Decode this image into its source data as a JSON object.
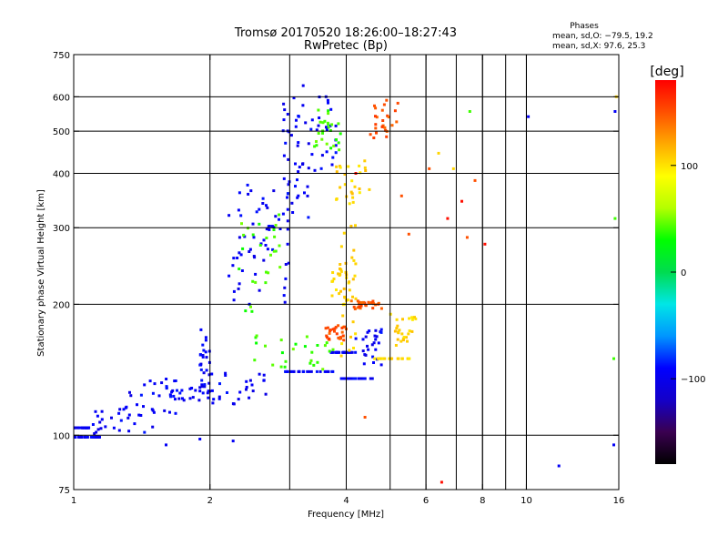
{
  "chart_data": {
    "type": "scatter",
    "title": "Tromsø 20170520 18:26:00–18:27:43",
    "subtitle": "RwPretec (Bp)",
    "xlabel": "Frequency [MHz]",
    "ylabel": "Stationary phase Virtual Height [km]",
    "x_scale": "log",
    "y_scale": "log",
    "xlim": [
      1,
      16
    ],
    "ylim": [
      75,
      750
    ],
    "x_ticks": [
      1,
      2,
      4,
      6,
      8,
      10,
      16
    ],
    "y_ticks": [
      75,
      100,
      200,
      300,
      400,
      500,
      600,
      750
    ],
    "x_tick_labels": [
      "1",
      "2",
      "4",
      "6",
      "8",
      "10",
      "16"
    ],
    "y_tick_labels": [
      "75",
      "100",
      "200",
      "300",
      "400",
      "500",
      "600",
      "750"
    ],
    "grid": true,
    "stats": {
      "heading": "Phases",
      "line_o": "mean, sd,O: −79.5, 19.2",
      "line_x": "mean, sd,X:  97.6, 25.3"
    },
    "colorbar": {
      "label": "[deg]",
      "range": [
        -180,
        180
      ],
      "ticks": [
        100,
        0,
        -100
      ],
      "tick_labels": [
        "100",
        "0",
        "−100"
      ],
      "colormap": [
        "#000000",
        "#3a0050",
        "#1400c8",
        "#0000ff",
        "#0096ff",
        "#00e6e6",
        "#00dc50",
        "#00ff00",
        "#b4ff00",
        "#ffff00",
        "#ffaa00",
        "#ff5000",
        "#ff0000"
      ]
    },
    "series": [
      {
        "phase_deg": -95,
        "traces": [
          {
            "f": [
              1.0,
              1.08
            ],
            "h": [
              104,
              104
            ]
          },
          {
            "f": [
              1.0,
              1.15
            ],
            "h": [
              99,
              99
            ]
          },
          {
            "f": [
              1.1,
              1.5
            ],
            "h": [
              100,
              115
            ]
          },
          {
            "f": [
              1.3,
              1.7
            ],
            "h": [
              112,
              135
            ]
          },
          {
            "f": [
              1.6,
              2.0
            ],
            "h": [
              120,
              130
            ]
          },
          {
            "f": [
              1.9,
              2.0
            ],
            "h": [
              125,
              175
            ]
          },
          {
            "f": [
              2.0,
              2.7
            ],
            "h": [
              118,
              140
            ]
          },
          {
            "f": [
              2.2,
              2.6
            ],
            "h": [
              200,
              380
            ]
          },
          {
            "f": [
              2.4,
              3.0
            ],
            "h": [
              250,
              400
            ]
          },
          {
            "f": [
              2.9,
              3.8
            ],
            "h": [
              140,
              140
            ]
          },
          {
            "f": [
              2.9,
              3.0
            ],
            "h": [
              200,
              600
            ]
          },
          {
            "f": [
              3.0,
              3.3
            ],
            "h": [
              300,
              640
            ]
          },
          {
            "f": [
              3.3,
              3.8
            ],
            "h": [
              400,
              620
            ]
          },
          {
            "f": [
              3.7,
              4.2
            ],
            "h": [
              155,
              155
            ]
          },
          {
            "f": [
              3.9,
              4.8
            ],
            "h": [
              135,
              135
            ]
          },
          {
            "f": [
              4.2,
              4.8
            ],
            "h": [
              145,
              175
            ]
          }
        ],
        "points": [
          [
            1.9,
            98
          ],
          [
            2.25,
            97
          ],
          [
            1.6,
            95
          ],
          [
            11.8,
            85
          ],
          [
            15.6,
            95
          ],
          [
            15.7,
            555
          ],
          [
            10.1,
            540
          ]
        ]
      },
      {
        "phase_deg": 40,
        "traces": [
          {
            "f": [
              2.5,
              3.8
            ],
            "h": [
              140,
              170
            ]
          },
          {
            "f": [
              2.3,
              2.9
            ],
            "h": [
              190,
              330
            ]
          },
          {
            "f": [
              3.4,
              3.9
            ],
            "h": [
              450,
              560
            ]
          }
        ],
        "points": [
          [
            15.7,
            315
          ],
          [
            15.6,
            150
          ],
          [
            7.5,
            555
          ]
        ]
      },
      {
        "phase_deg": 105,
        "traces": [
          {
            "f": [
              3.9,
              4.2
            ],
            "h": [
              150,
              310
            ]
          },
          {
            "f": [
              4.6,
              5.6
            ],
            "h": [
              150,
              150
            ]
          },
          {
            "f": [
              5.0,
              5.7
            ],
            "h": [
              160,
              190
            ]
          },
          {
            "f": [
              3.8,
              4.5
            ],
            "h": [
              340,
              430
            ]
          },
          {
            "f": [
              3.7,
              4.1
            ],
            "h": [
              200,
              250
            ]
          }
        ],
        "points": [
          [
            6.9,
            410
          ],
          [
            6.4,
            445
          ],
          [
            15.8,
            600
          ]
        ]
      },
      {
        "phase_deg": 150,
        "traces": [
          {
            "f": [
              3.6,
              4.0
            ],
            "h": [
              165,
              180
            ]
          },
          {
            "f": [
              4.1,
              4.8
            ],
            "h": [
              195,
              205
            ]
          },
          {
            "f": [
              4.5,
              5.2
            ],
            "h": [
              480,
              590
            ]
          }
        ],
        "points": [
          [
            5.3,
            355
          ],
          [
            5.5,
            290
          ],
          [
            4.4,
            110
          ],
          [
            6.1,
            410
          ],
          [
            7.4,
            285
          ],
          [
            7.7,
            385
          ]
        ]
      },
      {
        "phase_deg": 175,
        "traces": [],
        "points": [
          [
            4.2,
            400
          ],
          [
            6.5,
            78
          ],
          [
            8.1,
            275
          ],
          [
            6.7,
            315
          ],
          [
            7.2,
            345
          ]
        ]
      }
    ]
  }
}
